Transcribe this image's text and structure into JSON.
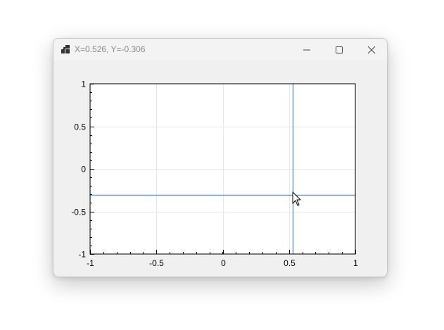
{
  "window": {
    "title": "X=0.526, Y=-0.306",
    "icon": "app-icon",
    "controls": [
      "minimize-icon",
      "maximize-icon",
      "close-icon"
    ]
  },
  "chart_data": {
    "type": "scatter",
    "title": "",
    "xlabel": "",
    "ylabel": "",
    "xlim": [
      -1,
      1
    ],
    "ylim": [
      -1,
      1
    ],
    "x_ticks": [
      "-1",
      "-0.5",
      "0",
      "0.5",
      "1"
    ],
    "y_ticks": [
      "1",
      "0.5",
      "0",
      "-0.5",
      "-1"
    ],
    "x_tick_values": [
      -1,
      -0.5,
      0,
      0.5,
      1
    ],
    "y_tick_values": [
      1,
      0.5,
      0,
      -0.5,
      -1
    ],
    "grid": true,
    "crosshair": {
      "x": 0.526,
      "y": -0.306,
      "color": "#6a9fcb"
    },
    "series": []
  }
}
